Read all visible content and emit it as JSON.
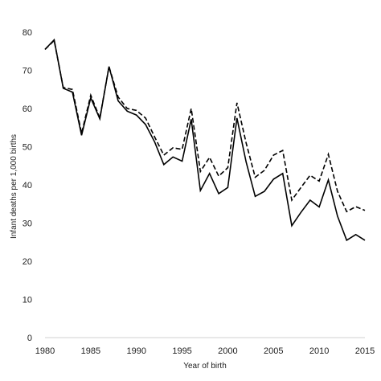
{
  "chart_data": {
    "type": "line",
    "title": "",
    "xlabel": "Year of birth",
    "ylabel": "Infant deaths per 1,000 births",
    "xlim": [
      1980,
      2015
    ],
    "ylim": [
      0,
      80
    ],
    "xticks": [
      1980,
      1985,
      1990,
      1995,
      2000,
      2005,
      2010,
      2015
    ],
    "yticks": [
      0,
      10,
      20,
      30,
      40,
      50,
      60,
      70,
      80
    ],
    "grid": false,
    "legend": "none",
    "x": [
      1980,
      1981,
      1982,
      1983,
      1984,
      1985,
      1986,
      1987,
      1988,
      1989,
      1990,
      1991,
      1992,
      1993,
      1994,
      1995,
      1996,
      1997,
      1998,
      1999,
      2000,
      2001,
      2002,
      2003,
      2004,
      2005,
      2006,
      2007,
      2008,
      2009,
      2010,
      2011,
      2012,
      2013,
      2014,
      2015
    ],
    "series": [
      {
        "style": "dashed",
        "color": "#000000",
        "values": [
          75.5,
          77.8,
          65.5,
          65.0,
          53.5,
          63.5,
          57.5,
          71.0,
          63.0,
          60.0,
          59.5,
          57.5,
          52.5,
          47.8,
          49.7,
          49.3,
          60.0,
          43.5,
          47.2,
          42.3,
          44.5,
          61.5,
          51.0,
          42.0,
          43.8,
          47.8,
          49.0,
          36.0,
          39.3,
          42.5,
          41.0,
          48.0,
          38.3,
          33.0,
          34.3,
          33.3
        ]
      },
      {
        "style": "solid",
        "color": "#000000",
        "values": [
          75.5,
          78.0,
          65.3,
          64.3,
          53.0,
          62.8,
          57.3,
          71.0,
          62.0,
          59.3,
          58.3,
          55.8,
          51.2,
          45.3,
          47.3,
          46.2,
          57.2,
          38.5,
          43.0,
          37.7,
          39.3,
          57.5,
          46.0,
          37.0,
          38.3,
          41.5,
          43.0,
          29.3,
          32.8,
          36.0,
          34.2,
          41.3,
          31.8,
          25.5,
          27.0,
          25.5
        ]
      }
    ]
  }
}
